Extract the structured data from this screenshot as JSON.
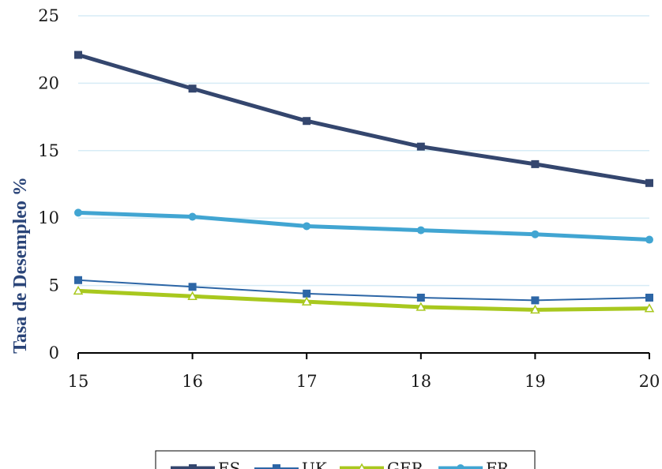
{
  "chart_data": {
    "type": "line",
    "title": "",
    "xlabel": "",
    "ylabel": "Tasa de Desempleo %",
    "categories": [
      "15",
      "16",
      "17",
      "18",
      "19",
      "20"
    ],
    "ylim": [
      0,
      25
    ],
    "yticks": [
      "0",
      "5",
      "10",
      "15",
      "20",
      "25"
    ],
    "grid": true,
    "legend_position": "bottom",
    "series": [
      {
        "name": "ES",
        "values": [
          22.1,
          19.6,
          17.2,
          15.3,
          14.0,
          12.6
        ],
        "color": "#34466e",
        "marker": "square",
        "line_weight": "heavy"
      },
      {
        "name": "UK",
        "values": [
          5.4,
          4.9,
          4.4,
          4.1,
          3.9,
          4.1
        ],
        "color": "#2d66a6",
        "marker": "square",
        "line_weight": "thin"
      },
      {
        "name": "GER",
        "values": [
          4.6,
          4.2,
          3.8,
          3.4,
          3.2,
          3.3
        ],
        "color": "#a8c81e",
        "marker": "triangle-open",
        "line_weight": "heavy"
      },
      {
        "name": "FR",
        "values": [
          10.4,
          10.1,
          9.4,
          9.1,
          8.8,
          8.4
        ],
        "color": "#41a5d2",
        "marker": "circle",
        "line_weight": "heavy"
      }
    ]
  },
  "colors": {
    "gridline": "#d7ecf6",
    "axis": "#000000"
  }
}
